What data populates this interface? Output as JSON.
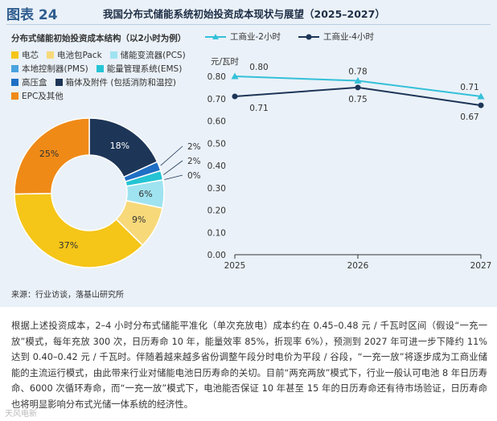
{
  "figure": {
    "label": "图表 24",
    "title": "我国分布式储能系统初始投资成本现状与展望（2025–2027）"
  },
  "colors": {
    "panel_bg": "#eaf1f8",
    "title_blue": "#2f5d8f",
    "line_2h": "#33c0d8",
    "line_4h": "#1d3557"
  },
  "chart_data": [
    {
      "type": "pie",
      "subtitle": "分布式储能初始投资成本结构（以2小时为例）",
      "slices": [
        {
          "label": "电芯",
          "value": 37,
          "value_label": "37%",
          "color": "#f5c518"
        },
        {
          "label": "电池包Pack",
          "value": 9,
          "value_label": "9%",
          "color": "#f7d97a"
        },
        {
          "label": "储能变流器(PCS)",
          "value": 6,
          "value_label": "6%",
          "color": "#9fe3f0"
        },
        {
          "label": "本地控制器(PMS)",
          "value": 0,
          "value_label": "0%",
          "color": "#4aa3df"
        },
        {
          "label": "能量管理系统(EMS)",
          "value": 2,
          "value_label": "2%",
          "color": "#25c4d4"
        },
        {
          "label": "高压盒",
          "value": 2,
          "value_label": "2%",
          "color": "#1f6fc4"
        },
        {
          "label": "箱体及附件 (包括消防和温控)",
          "value": 18,
          "value_label": "18%",
          "color": "#1d3557"
        },
        {
          "label": "EPC及其他",
          "value": 25,
          "value_label": "25%",
          "color": "#ef8a17"
        }
      ]
    },
    {
      "type": "line",
      "ylabel": "元/瓦时",
      "x": [
        "2025",
        "2026",
        "2027"
      ],
      "ylim": [
        0.0,
        0.8
      ],
      "yticks": [
        "0.00",
        "0.10",
        "0.20",
        "0.30",
        "0.40",
        "0.50",
        "0.60",
        "0.70",
        "0.80"
      ],
      "series": [
        {
          "name": "工商业-2小时",
          "values": [
            0.8,
            0.78,
            0.71
          ],
          "labels": [
            "0.80",
            "0.78",
            "0.71"
          ],
          "color": "#33c0d8",
          "marker": "triangle"
        },
        {
          "name": "工商业-4小时",
          "values": [
            0.71,
            0.75,
            0.67
          ],
          "labels": [
            "0.71",
            "0.75",
            "0.67"
          ],
          "color": "#1d3557",
          "marker": "circle"
        }
      ]
    }
  ],
  "source": "来源：行业访谈，落基山研究所",
  "body": "根据上述投资成本，2–4 小时分布式储能平准化（单次充放电）成本约在 0.45–0.48 元 / 千瓦时区间（假设“一充一放”模式，每年充放 300 次，日历寿命 10 年，能量效率 85%，折现率 6%），预测到 2027 年可进一步下降约 11% 达到 0.40–0.42 元 / 千瓦时。伴随着越来越多省份调整午段分时电价为平段 / 谷段，“一充一放”将逐步成为工商业储能的主流运行模式，由此带来行业对储能电池日历寿命的关切。目前“两充两放”模式下，行业一般认可电池 8 年日历寿命、6000 次循环寿命，而“一充一放”模式下，电池能否保证 10 年甚至 15 年的日历寿命还有待市场验证，日历寿命也将明显影响分布式光储一体系统的经济性。",
  "watermark": "天风电新"
}
